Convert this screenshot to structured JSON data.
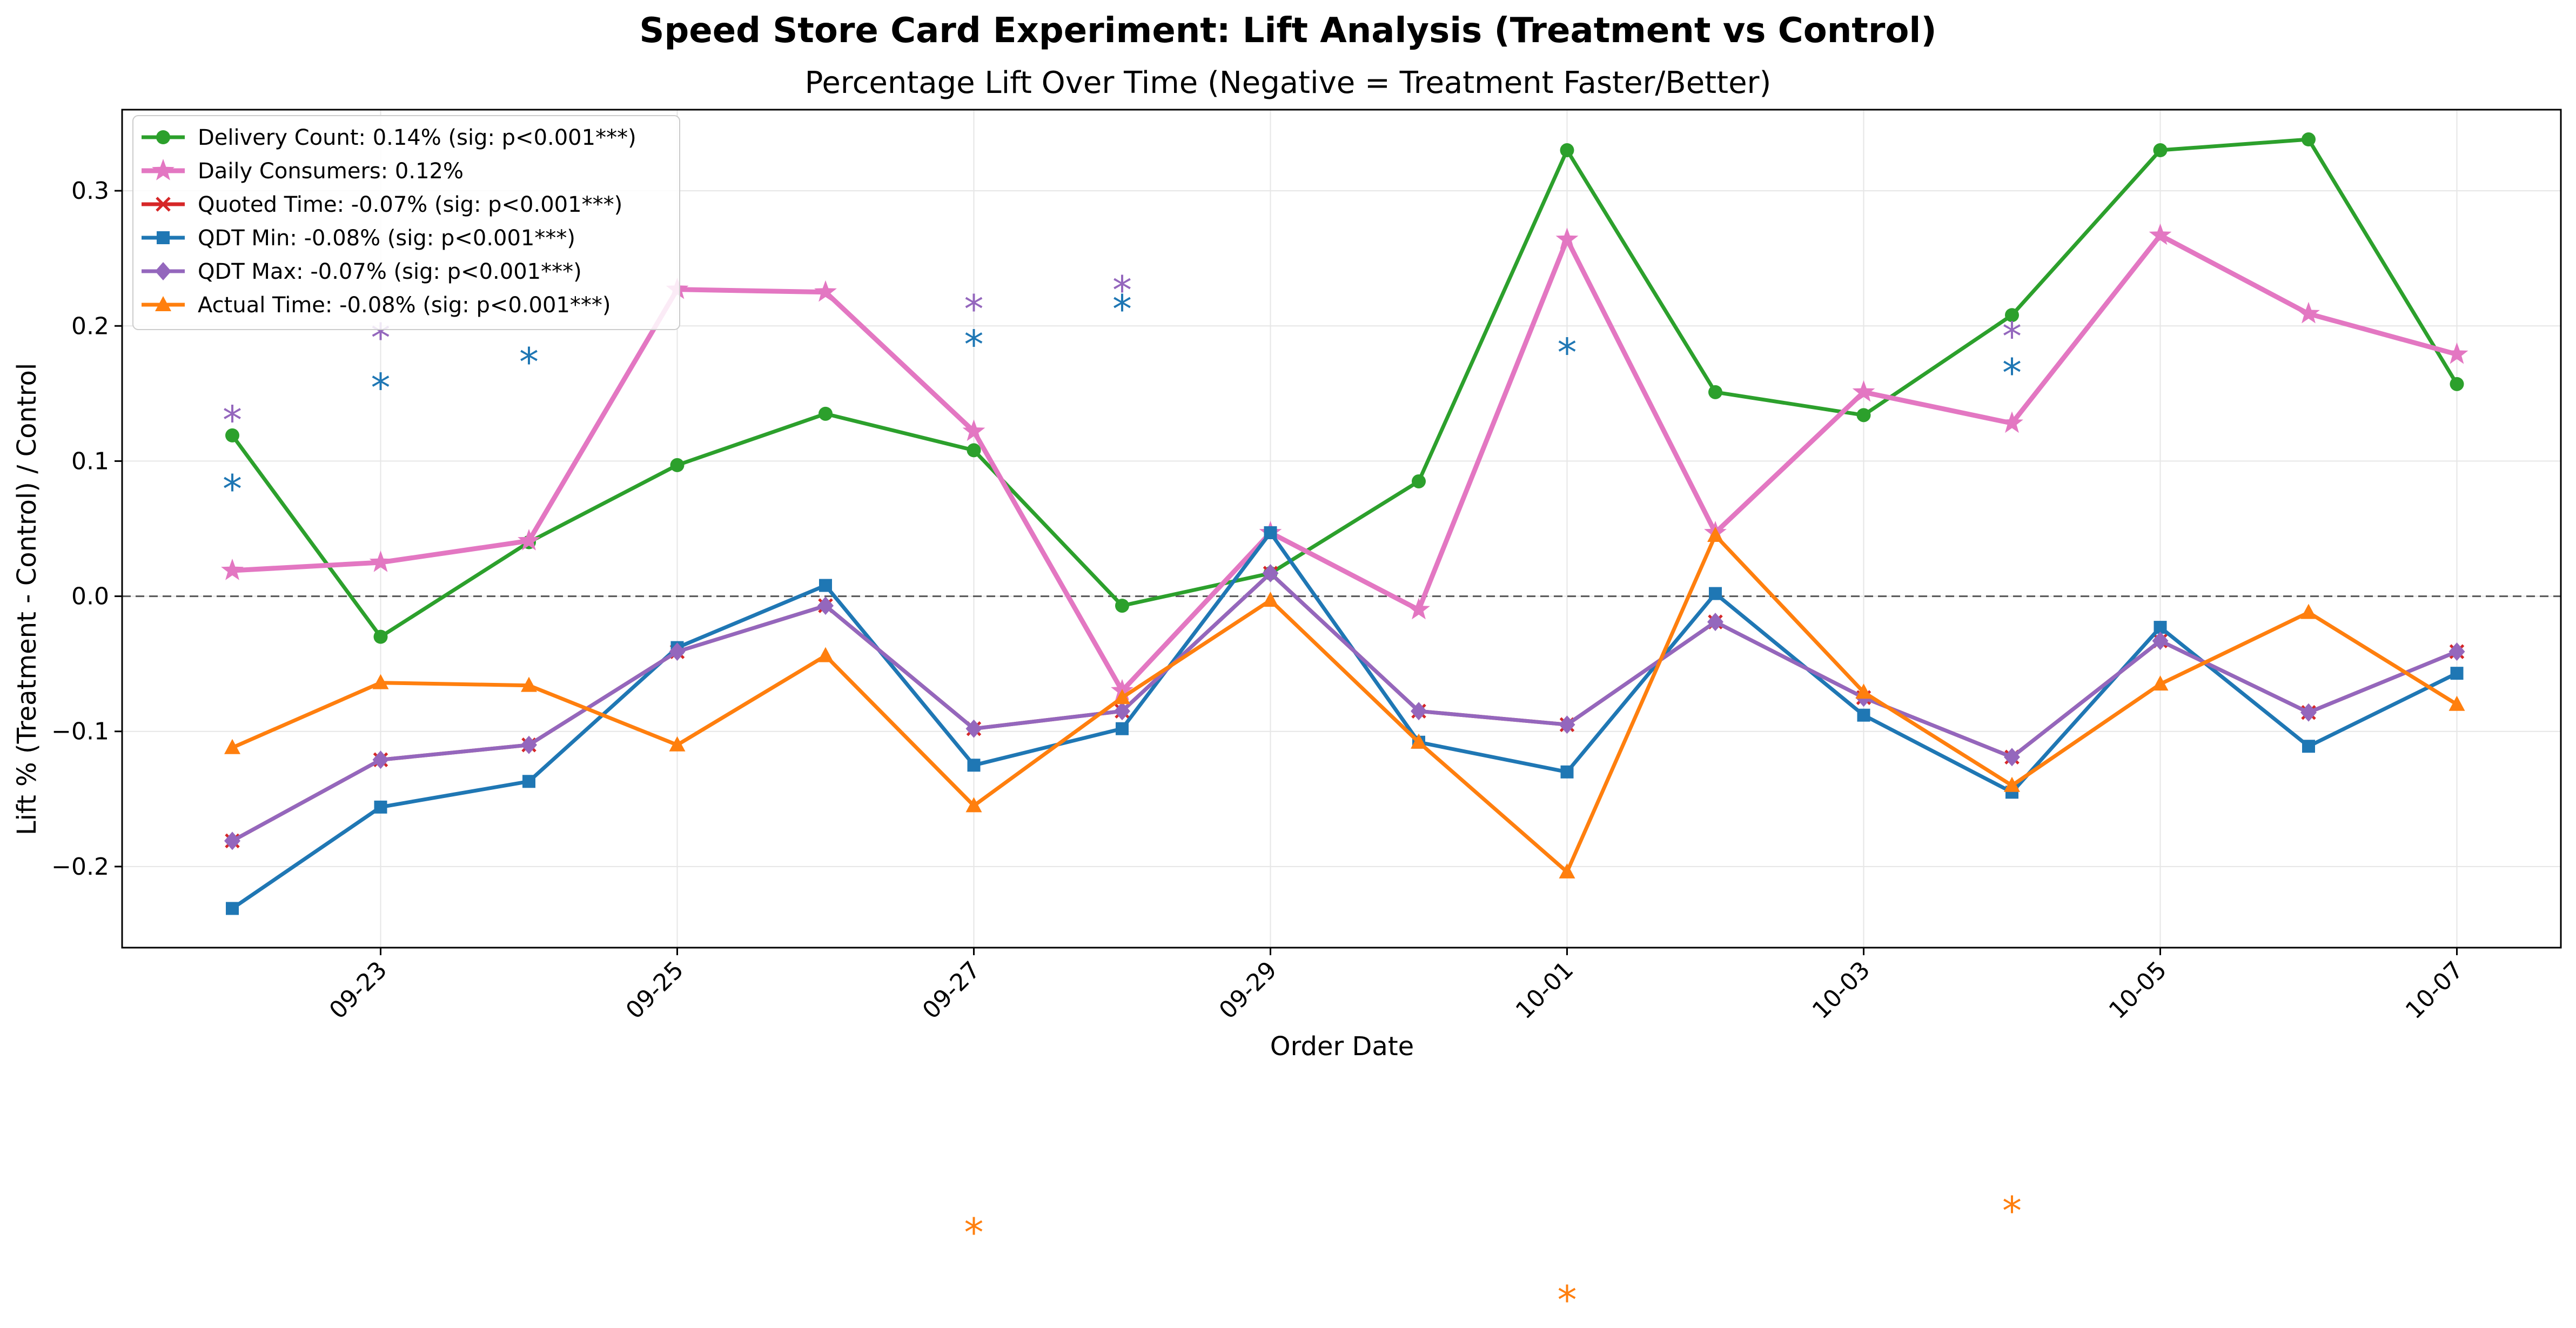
{
  "chart_data": {
    "type": "line",
    "title": "Speed Store Card Experiment: Lift Analysis (Treatment vs Control)",
    "subtitle": "Percentage Lift Over Time (Negative = Treatment Faster/Better)",
    "xlabel": "Order Date",
    "ylabel": "Lift % (Treatment - Control) / Control",
    "x": [
      "09-22",
      "09-23",
      "09-24",
      "09-25",
      "09-26",
      "09-27",
      "09-28",
      "09-29",
      "09-30",
      "10-01",
      "10-02",
      "10-03",
      "10-04",
      "10-05",
      "10-06",
      "10-07"
    ],
    "xticks": [
      "09-23",
      "09-25",
      "09-27",
      "09-29",
      "10-01",
      "10-03",
      "10-05",
      "10-07"
    ],
    "ylim": [
      -0.26,
      0.36
    ],
    "yticks": [
      -0.2,
      -0.1,
      0.0,
      0.1,
      0.2,
      0.3
    ],
    "ytick_labels": [
      "−0.2",
      "−0.1",
      "0.0",
      "0.1",
      "0.2",
      "0.3"
    ],
    "zero_line": 0.0,
    "grid": true,
    "legend_position": "top-left",
    "series": [
      {
        "name": "Delivery Count: 0.14% (sig: p<0.001***)",
        "color": "#2ca02c",
        "marker": "circle",
        "values": [
          0.119,
          -0.03,
          0.04,
          0.097,
          0.135,
          0.108,
          -0.007,
          0.017,
          0.085,
          0.33,
          0.151,
          0.134,
          0.208,
          0.33,
          0.338,
          0.157
        ]
      },
      {
        "name": "Daily Consumers: 0.12%",
        "color": "#e377c2",
        "marker": "star",
        "values": [
          0.019,
          0.025,
          0.041,
          0.227,
          0.225,
          0.122,
          -0.07,
          0.047,
          -0.01,
          0.264,
          0.047,
          0.151,
          0.128,
          0.267,
          0.209,
          0.179
        ]
      },
      {
        "name": "Quoted Time: -0.07% (sig: p<0.001***)",
        "color": "#d62728",
        "marker": "x",
        "values": [
          -0.181,
          -0.121,
          -0.11,
          -0.041,
          -0.007,
          -0.098,
          -0.085,
          0.017,
          -0.085,
          -0.095,
          -0.019,
          -0.075,
          -0.119,
          -0.033,
          -0.086,
          -0.041
        ]
      },
      {
        "name": "QDT Min: -0.08% (sig: p<0.001***)",
        "color": "#1f77b4",
        "marker": "square",
        "values": [
          -0.231,
          -0.156,
          -0.137,
          -0.038,
          0.008,
          -0.125,
          -0.098,
          0.047,
          -0.108,
          -0.13,
          0.002,
          -0.088,
          -0.145,
          -0.023,
          -0.111,
          -0.057
        ]
      },
      {
        "name": "QDT Max: -0.07% (sig: p<0.001***)",
        "color": "#9467bd",
        "marker": "diamond",
        "values": [
          -0.181,
          -0.121,
          -0.11,
          -0.041,
          -0.007,
          -0.098,
          -0.085,
          0.017,
          -0.085,
          -0.095,
          -0.019,
          -0.075,
          -0.119,
          -0.033,
          -0.086,
          -0.041
        ]
      },
      {
        "name": "Actual Time: -0.08% (sig: p<0.001***)",
        "color": "#ff7f0e",
        "marker": "triangle",
        "values": [
          -0.112,
          -0.064,
          -0.066,
          -0.11,
          -0.044,
          -0.155,
          -0.075,
          -0.003,
          -0.108,
          -0.204,
          0.045,
          -0.071,
          -0.14,
          -0.065,
          -0.012,
          -0.08
        ]
      }
    ],
    "annotations": [
      {
        "text": "*",
        "color": "#9467bd",
        "x": "09-22",
        "y": 0.138
      },
      {
        "text": "*",
        "color": "#1f77b4",
        "x": "09-22",
        "y": 0.087
      },
      {
        "text": "*",
        "color": "#9467bd",
        "x": "09-23",
        "y": 0.199
      },
      {
        "text": "*",
        "color": "#1f77b4",
        "x": "09-23",
        "y": 0.162
      },
      {
        "text": "*",
        "color": "#1f77b4",
        "x": "09-24",
        "y": 0.181
      },
      {
        "text": "*",
        "color": "#9467bd",
        "x": "09-27",
        "y": 0.22
      },
      {
        "text": "*",
        "color": "#1f77b4",
        "x": "09-27",
        "y": 0.194
      },
      {
        "text": "*",
        "color": "#9467bd",
        "x": "09-28",
        "y": 0.234
      },
      {
        "text": "*",
        "color": "#1f77b4",
        "x": "09-28",
        "y": 0.22
      },
      {
        "text": "*",
        "color": "#1f77b4",
        "x": "10-01",
        "y": 0.188
      },
      {
        "text": "*",
        "color": "#9467bd",
        "x": "10-04",
        "y": 0.2
      },
      {
        "text": "*",
        "color": "#1f77b4",
        "x": "10-04",
        "y": 0.173
      },
      {
        "text": "*",
        "color": "#ff7f0e",
        "x": "09-27",
        "y": -0.463
      },
      {
        "text": "*",
        "color": "#ff7f0e",
        "x": "10-01",
        "y": -0.513
      },
      {
        "text": "*",
        "color": "#ff7f0e",
        "x": "10-04",
        "y": -0.447
      }
    ]
  }
}
